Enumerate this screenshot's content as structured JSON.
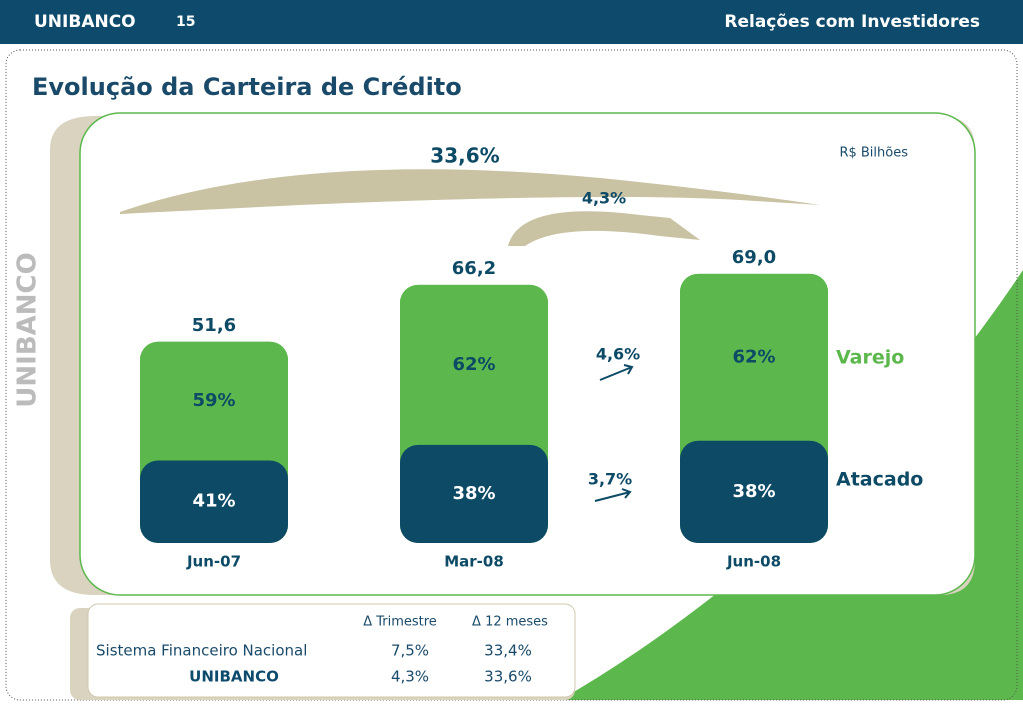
{
  "header": {
    "brand": "UNIBANCO",
    "page": "15",
    "section": "Relações com Investidores"
  },
  "chart_data": {
    "type": "bar",
    "title": "Evolução da Carteira de Crédito",
    "unit_label": "R$ Bilhões",
    "categories": [
      "Jun-07",
      "Mar-08",
      "Jun-08"
    ],
    "totals": [
      51.6,
      66.2,
      69.0
    ],
    "total_labels": [
      "51,6",
      "66,2",
      "69,0"
    ],
    "series": [
      {
        "name": "Varejo",
        "color": "#5cb84c",
        "values": [
          59,
          62,
          62
        ],
        "value_labels": [
          "59%",
          "62%",
          "62%"
        ]
      },
      {
        "name": "Atacado",
        "color": "#0d4a66",
        "values": [
          41,
          38,
          38
        ],
        "value_labels": [
          "41%",
          "38%",
          "38%"
        ]
      }
    ],
    "annotations": [
      "33,6%",
      "4,3%",
      "4,6%",
      "3,7%"
    ]
  },
  "table": {
    "columns": [
      "Δ Trimestre",
      "Δ 12 meses"
    ],
    "rows": [
      [
        "Sistema Financeiro Nacional",
        "7,5%",
        "33,4%"
      ],
      [
        "UNIBANCO",
        "4,3%",
        "33,6%"
      ]
    ]
  },
  "watermark": "UNIBANCO"
}
